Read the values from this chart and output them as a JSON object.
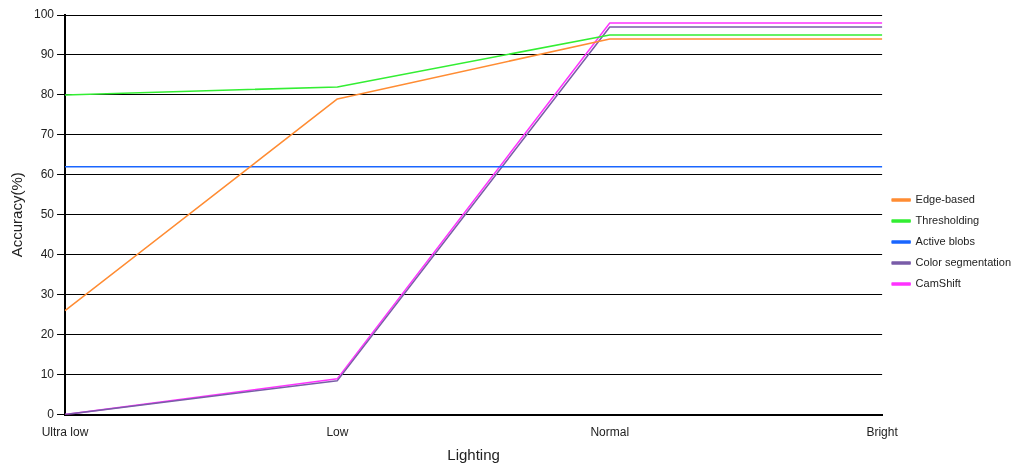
{
  "chart_data": {
    "type": "line",
    "xlabel": "Lighting",
    "ylabel": "Accuracy(%)",
    "categories": [
      "Ultra low",
      "Low",
      "Normal",
      "Bright"
    ],
    "series": [
      {
        "name": "Edge-based",
        "color": "#ff8c33",
        "values": [
          26,
          79,
          94,
          94
        ]
      },
      {
        "name": "Thresholding",
        "color": "#33ee33",
        "values": [
          80,
          82,
          95,
          95
        ]
      },
      {
        "name": "Active blobs",
        "color": "#1a66ff",
        "values": [
          62,
          62,
          62,
          62
        ]
      },
      {
        "name": "Color segmentation",
        "color": "#7a5ca8",
        "values": [
          0,
          8.5,
          97,
          97
        ]
      },
      {
        "name": "CamShift",
        "color": "#ff33ff",
        "values": [
          0,
          9,
          98,
          98
        ]
      }
    ],
    "ylim": [
      0,
      100
    ],
    "yticks": [
      0,
      10,
      20,
      30,
      40,
      50,
      60,
      70,
      80,
      90,
      100
    ],
    "grid": "y",
    "legend": "right",
    "marker": "none",
    "line_style": "solid"
  }
}
